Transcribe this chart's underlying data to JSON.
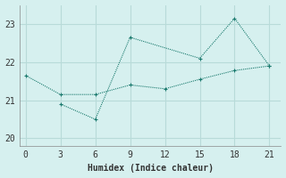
{
  "xlabel": "Humidex (Indice chaleur)",
  "bg_color": "#d6f0ef",
  "grid_color": "#b8dbd9",
  "line_color": "#1a7a6e",
  "x_ticks": [
    0,
    3,
    6,
    9,
    12,
    15,
    18,
    21
  ],
  "ylim": [
    19.8,
    23.5
  ],
  "xlim": [
    -0.5,
    22
  ],
  "yticks": [
    20,
    21,
    22,
    23
  ],
  "line1_x": [
    0,
    3,
    6,
    9,
    12,
    15,
    18,
    21
  ],
  "line1_y": [
    21.65,
    21.15,
    21.15,
    21.4,
    21.3,
    21.55,
    21.78,
    21.9
  ],
  "line2_x": [
    3,
    6,
    9,
    15,
    18,
    21
  ],
  "line2_y": [
    20.9,
    20.5,
    22.65,
    22.1,
    23.15,
    21.9
  ]
}
